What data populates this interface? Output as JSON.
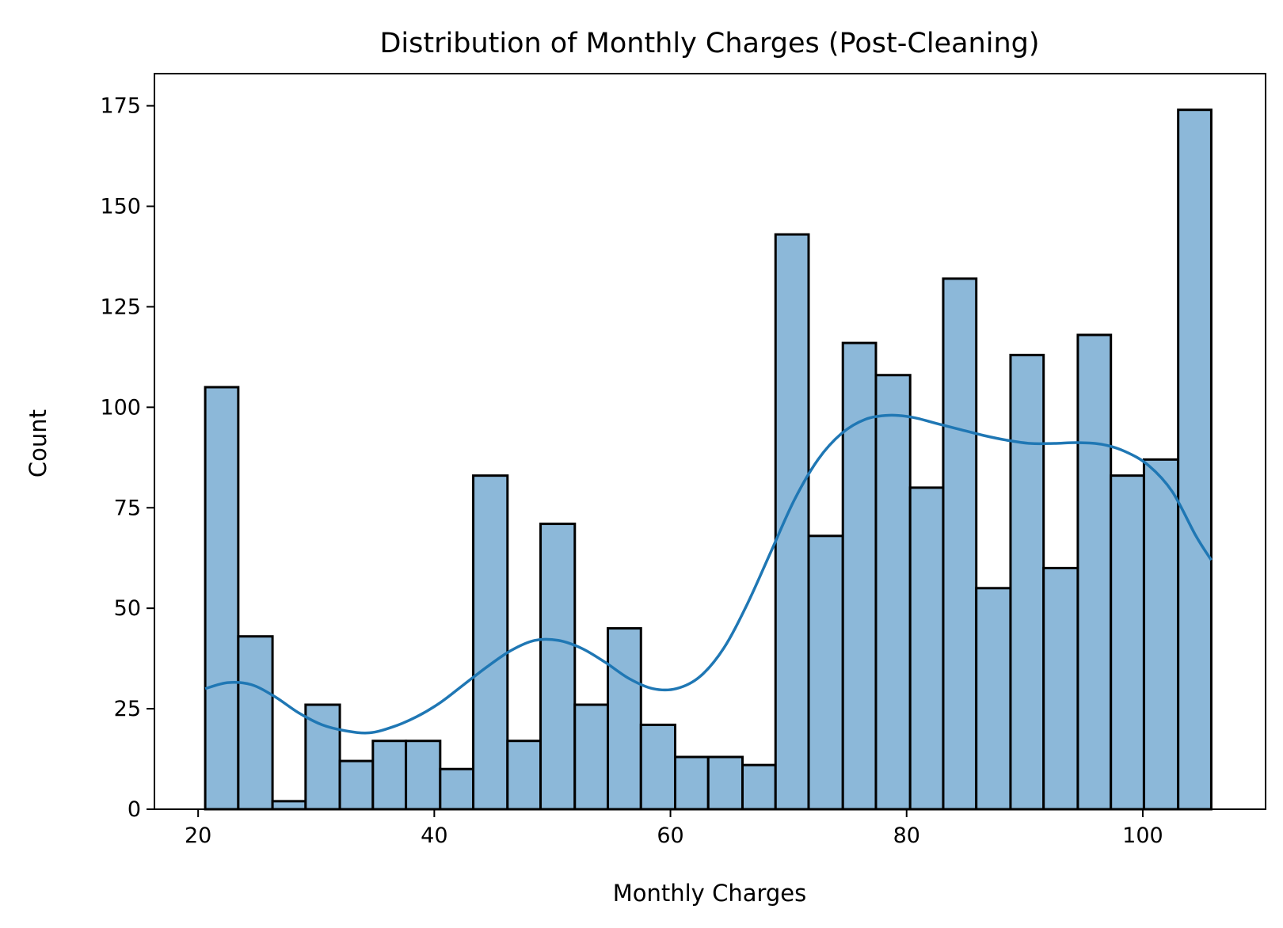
{
  "chart_data": {
    "type": "bar",
    "title": "Distribution of Monthly Charges (Post-Cleaning)",
    "xlabel": "Monthly Charges",
    "ylabel": "Count",
    "xlim": [
      16.3,
      110.4
    ],
    "ylim": [
      0,
      183
    ],
    "xticks": [
      20,
      40,
      60,
      80,
      100
    ],
    "yticks": [
      0,
      25,
      50,
      75,
      100,
      125,
      150,
      175
    ],
    "grid": false,
    "bar_color": "#8cb8d9",
    "edge_color": "#000000",
    "kde_color": "#1f77b4",
    "bins": [
      {
        "x0": 20.6,
        "x1": 23.4,
        "count": 105
      },
      {
        "x0": 23.4,
        "x1": 26.3,
        "count": 43
      },
      {
        "x0": 26.3,
        "x1": 29.1,
        "count": 2
      },
      {
        "x0": 29.1,
        "x1": 32.0,
        "count": 26
      },
      {
        "x0": 32.0,
        "x1": 34.8,
        "count": 12
      },
      {
        "x0": 34.8,
        "x1": 37.6,
        "count": 17
      },
      {
        "x0": 37.6,
        "x1": 40.5,
        "count": 17
      },
      {
        "x0": 40.5,
        "x1": 43.3,
        "count": 10
      },
      {
        "x0": 43.3,
        "x1": 46.2,
        "count": 83
      },
      {
        "x0": 46.2,
        "x1": 49.0,
        "count": 17
      },
      {
        "x0": 49.0,
        "x1": 51.9,
        "count": 71
      },
      {
        "x0": 51.9,
        "x1": 54.7,
        "count": 26
      },
      {
        "x0": 54.7,
        "x1": 57.5,
        "count": 45
      },
      {
        "x0": 57.5,
        "x1": 60.4,
        "count": 21
      },
      {
        "x0": 60.4,
        "x1": 63.2,
        "count": 13
      },
      {
        "x0": 63.2,
        "x1": 66.1,
        "count": 13
      },
      {
        "x0": 66.1,
        "x1": 68.9,
        "count": 11
      },
      {
        "x0": 68.9,
        "x1": 71.7,
        "count": 143
      },
      {
        "x0": 71.7,
        "x1": 74.6,
        "count": 68
      },
      {
        "x0": 74.6,
        "x1": 77.4,
        "count": 116
      },
      {
        "x0": 77.4,
        "x1": 80.3,
        "count": 108
      },
      {
        "x0": 80.3,
        "x1": 83.1,
        "count": 80
      },
      {
        "x0": 83.1,
        "x1": 85.9,
        "count": 132
      },
      {
        "x0": 85.9,
        "x1": 88.8,
        "count": 55
      },
      {
        "x0": 88.8,
        "x1": 91.6,
        "count": 113
      },
      {
        "x0": 91.6,
        "x1": 94.5,
        "count": 60
      },
      {
        "x0": 94.5,
        "x1": 97.3,
        "count": 118
      },
      {
        "x0": 97.3,
        "x1": 100.1,
        "count": 83
      },
      {
        "x0": 100.1,
        "x1": 103.0,
        "count": 87
      },
      {
        "x0": 103.0,
        "x1": 105.8,
        "count": 174
      }
    ],
    "kde": {
      "x": [
        20.6,
        22.5,
        24.5,
        26.5,
        28.5,
        30.5,
        32.5,
        34.5,
        36.5,
        38.5,
        40.5,
        42.5,
        44.5,
        46.5,
        48.5,
        50.5,
        52.5,
        54.5,
        56.5,
        58.5,
        60.5,
        62.5,
        64.5,
        66.5,
        68.5,
        70.5,
        72.5,
        74.5,
        76.5,
        78.5,
        80.5,
        82.5,
        84.5,
        86.5,
        88.5,
        90.5,
        92.5,
        94.5,
        96.5,
        98.5,
        100.5,
        102.5,
        104.5,
        105.8
      ],
      "y": [
        30,
        31.5,
        31,
        28,
        24,
        21,
        19.5,
        19,
        20.5,
        23,
        26.5,
        31,
        35.5,
        39.5,
        42,
        42,
        40,
        36.5,
        32.5,
        30,
        30,
        33,
        40,
        51,
        64,
        77,
        87,
        93.5,
        97,
        98,
        97.5,
        96,
        94.5,
        93,
        91.8,
        91,
        91,
        91.2,
        90.8,
        89,
        85.5,
        79,
        68,
        62
      ]
    }
  }
}
